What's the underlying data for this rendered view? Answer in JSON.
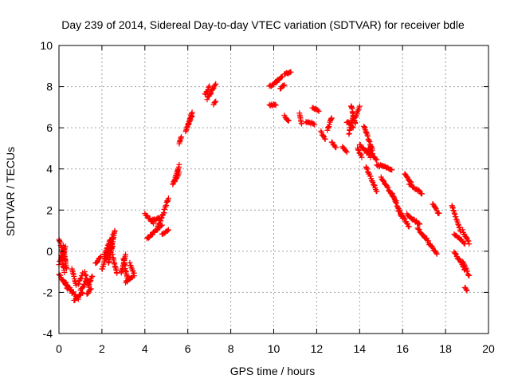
{
  "chart_data": {
    "type": "scatter",
    "title": "Day 239 of 2014, Sidereal Day-to-day VTEC variation (SDTVAR) for receiver bdle",
    "xlabel": "GPS time / hours",
    "ylabel": "SDTVAR / TECUs",
    "xlim": [
      0,
      20
    ],
    "ylim": [
      -4,
      10
    ],
    "grid": true,
    "marker": "+",
    "colors": {
      "points": "#ff0000",
      "axes": "#000000",
      "grid": "#a0a0a0"
    },
    "x_ticks": [
      0,
      2,
      4,
      6,
      8,
      10,
      12,
      14,
      16,
      18,
      20
    ],
    "x_tick_labels": [
      "0",
      "2",
      "4",
      "6",
      "8",
      "10",
      "12",
      "14",
      "16",
      "18",
      "20"
    ],
    "y_ticks": [
      -4,
      -2,
      0,
      2,
      4,
      6,
      8,
      10
    ],
    "y_tick_labels": [
      "-4",
      "-2",
      "0",
      "2",
      "4",
      "6",
      "8",
      "10"
    ],
    "segments": [
      [
        0.0,
        -0.6,
        0.3,
        0.2
      ],
      [
        0.0,
        0.6,
        0.3,
        -0.5
      ],
      [
        0.0,
        -1.1,
        0.4,
        -1.8
      ],
      [
        0.1,
        -0.2,
        0.25,
        -1.0
      ],
      [
        0.2,
        0.3,
        0.35,
        -0.9
      ],
      [
        0.3,
        -1.5,
        0.6,
        -2.0
      ],
      [
        0.5,
        -1.8,
        0.9,
        -2.3
      ],
      [
        0.6,
        -0.9,
        0.8,
        -1.6
      ],
      [
        0.7,
        -2.4,
        1.1,
        -2.0
      ],
      [
        0.9,
        -1.6,
        1.1,
        -1.1
      ],
      [
        1.0,
        -1.9,
        1.3,
        -1.4
      ],
      [
        1.2,
        -1.0,
        1.4,
        -1.8
      ],
      [
        1.3,
        -2.1,
        1.5,
        -1.8
      ],
      [
        1.4,
        -1.6,
        1.55,
        -1.2
      ],
      [
        1.7,
        -0.6,
        1.95,
        -0.3
      ],
      [
        2.0,
        -0.9,
        2.3,
        0.1
      ],
      [
        2.1,
        -0.2,
        2.4,
        0.6
      ],
      [
        2.2,
        -0.4,
        2.5,
        0.8
      ],
      [
        2.3,
        -0.6,
        2.5,
        0.3
      ],
      [
        2.4,
        0.0,
        2.6,
        1.0
      ],
      [
        2.5,
        -0.2,
        2.7,
        -1.1
      ],
      [
        2.9,
        -1.1,
        3.1,
        -0.2
      ],
      [
        3.0,
        -0.4,
        3.2,
        -1.4
      ],
      [
        3.1,
        -1.5,
        3.5,
        -1.2
      ],
      [
        3.3,
        -0.6,
        3.5,
        -1.1
      ],
      [
        4.0,
        1.8,
        4.4,
        1.4
      ],
      [
        4.1,
        0.6,
        4.4,
        0.9
      ],
      [
        4.3,
        1.5,
        4.7,
        1.6
      ],
      [
        4.4,
        0.9,
        4.8,
        1.3
      ],
      [
        4.6,
        1.2,
        4.9,
        1.9
      ],
      [
        4.8,
        0.8,
        5.1,
        1.0
      ],
      [
        4.9,
        2.0,
        5.1,
        2.6
      ],
      [
        5.3,
        3.2,
        5.6,
        4.2
      ],
      [
        5.4,
        3.4,
        5.6,
        3.8
      ],
      [
        5.6,
        5.2,
        5.7,
        5.6
      ],
      [
        5.9,
        5.8,
        6.2,
        6.8
      ],
      [
        6.0,
        6.1,
        6.2,
        6.6
      ],
      [
        6.8,
        7.6,
        7.0,
        8.0
      ],
      [
        6.9,
        7.4,
        7.3,
        8.1
      ],
      [
        7.2,
        7.1,
        7.3,
        7.3
      ],
      [
        9.8,
        7.1,
        10.1,
        7.1
      ],
      [
        9.8,
        8.0,
        10.2,
        8.3
      ],
      [
        10.1,
        8.2,
        10.4,
        8.5
      ],
      [
        10.3,
        7.9,
        10.5,
        8.1
      ],
      [
        10.5,
        8.6,
        10.8,
        8.7
      ],
      [
        10.5,
        6.6,
        10.7,
        6.3
      ],
      [
        11.2,
        6.7,
        11.3,
        6.2
      ],
      [
        11.5,
        6.3,
        11.9,
        6.2
      ],
      [
        11.8,
        7.0,
        12.1,
        6.8
      ],
      [
        12.2,
        5.8,
        12.4,
        5.4
      ],
      [
        12.5,
        5.9,
        12.7,
        6.5
      ],
      [
        12.7,
        5.3,
        12.9,
        5.0
      ],
      [
        13.2,
        5.1,
        13.4,
        4.8
      ],
      [
        13.4,
        6.3,
        13.7,
        6.0
      ],
      [
        13.5,
        5.7,
        13.7,
        6.6
      ],
      [
        13.6,
        7.1,
        13.8,
        6.2
      ],
      [
        13.8,
        6.5,
        14.0,
        7.0
      ],
      [
        13.9,
        5.0,
        14.1,
        4.6
      ],
      [
        14.0,
        5.2,
        14.5,
        4.6
      ],
      [
        14.2,
        6.1,
        14.6,
        4.9
      ],
      [
        14.4,
        5.0,
        14.8,
        4.4
      ],
      [
        14.3,
        4.1,
        14.8,
        2.9
      ],
      [
        14.8,
        4.2,
        15.5,
        4.0
      ],
      [
        15.0,
        3.6,
        15.7,
        2.4
      ],
      [
        15.5,
        2.8,
        16.0,
        1.6
      ],
      [
        15.8,
        2.0,
        16.3,
        1.2
      ],
      [
        16.1,
        3.8,
        16.4,
        3.3
      ],
      [
        16.3,
        3.3,
        16.9,
        2.8
      ],
      [
        16.2,
        1.8,
        16.8,
        1.3
      ],
      [
        16.7,
        1.1,
        17.2,
        0.5
      ],
      [
        17.2,
        0.4,
        17.6,
        -0.1
      ],
      [
        17.4,
        2.3,
        17.7,
        1.8
      ],
      [
        18.3,
        2.2,
        18.7,
        1.0
      ],
      [
        18.4,
        0.8,
        18.9,
        0.4
      ],
      [
        18.4,
        0.0,
        18.9,
        -0.9
      ],
      [
        18.8,
        -0.5,
        19.1,
        -1.2
      ],
      [
        18.8,
        1.0,
        19.1,
        0.4
      ],
      [
        18.9,
        -1.8,
        19.0,
        -1.9
      ]
    ]
  }
}
